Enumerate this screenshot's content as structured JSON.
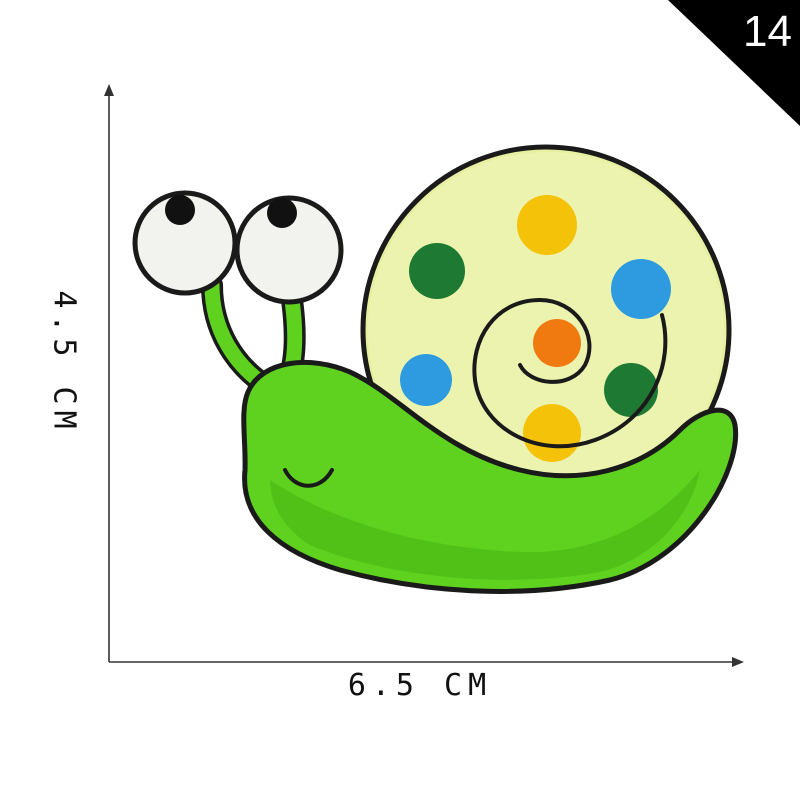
{
  "badge": {
    "number": "14",
    "background": "#000000",
    "text_color": "#ffffff"
  },
  "dimensions": {
    "width_label": "6.5 CM",
    "height_label": "4.5 CM"
  },
  "patch": {
    "subject": "embroidered snail patch",
    "body_color": "#5fd11f",
    "shell_color": "#e6f0a0",
    "outline_color": "#1a1a1a",
    "dot_colors": [
      "#f5c20a",
      "#1e7a32",
      "#2e9be0",
      "#f07a10",
      "#2e9be0",
      "#1e7a32",
      "#f5c20a"
    ]
  }
}
